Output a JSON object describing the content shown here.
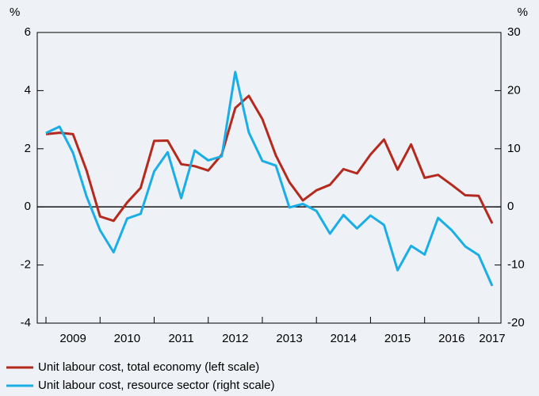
{
  "chart_data": {
    "type": "line",
    "ylabel": "%",
    "y2label": "%",
    "categories": [
      null,
      null,
      "2009",
      null,
      null,
      null,
      "2010",
      null,
      null,
      null,
      "2011",
      null,
      null,
      null,
      "2012",
      null,
      null,
      null,
      "2013",
      null,
      null,
      null,
      "2014",
      null,
      null,
      null,
      "2015",
      null,
      null,
      null,
      "2016",
      null,
      null,
      "2017"
    ],
    "series": [
      {
        "name": "Unit labour cost, total economy (left scale)",
        "color": "#b52a1e",
        "values": [
          2.5,
          2.55,
          2.5,
          1.25,
          -0.33,
          -0.48,
          0.15,
          0.65,
          2.27,
          2.28,
          1.47,
          1.4,
          1.25,
          1.8,
          3.4,
          3.82,
          3.02,
          1.77,
          0.85,
          0.22,
          0.57,
          0.76,
          1.3,
          1.15,
          1.8,
          2.32,
          1.28,
          2.15,
          1.0,
          1.1,
          0.76,
          0.4,
          0.38,
          -0.57
        ]
      },
      {
        "name": "Unit labour cost, resource sector (right scale)",
        "color": "#1aaee6",
        "axis": "y2",
        "values": [
          12.7,
          13.8,
          9.3,
          1.8,
          -4,
          -7.8,
          -2,
          -1.2,
          6.1,
          9.4,
          1.5,
          9.7,
          8,
          8.7,
          23.2,
          12.8,
          7.9,
          7.1,
          -0.1,
          0.5,
          -0.7,
          -4.6,
          -1.4,
          -3.7,
          -1.5,
          -3.1,
          -10.9,
          -6.7,
          -8.2,
          -1.9,
          -4,
          -6.8,
          -8.3,
          -13.6
        ]
      }
    ],
    "ylim": [
      -4,
      6
    ],
    "yticks": [
      -4,
      -2,
      0,
      2,
      4,
      6
    ],
    "y2lim": [
      -20,
      30
    ],
    "y2ticks": [
      -20,
      -10,
      0,
      10,
      20,
      30
    ]
  }
}
